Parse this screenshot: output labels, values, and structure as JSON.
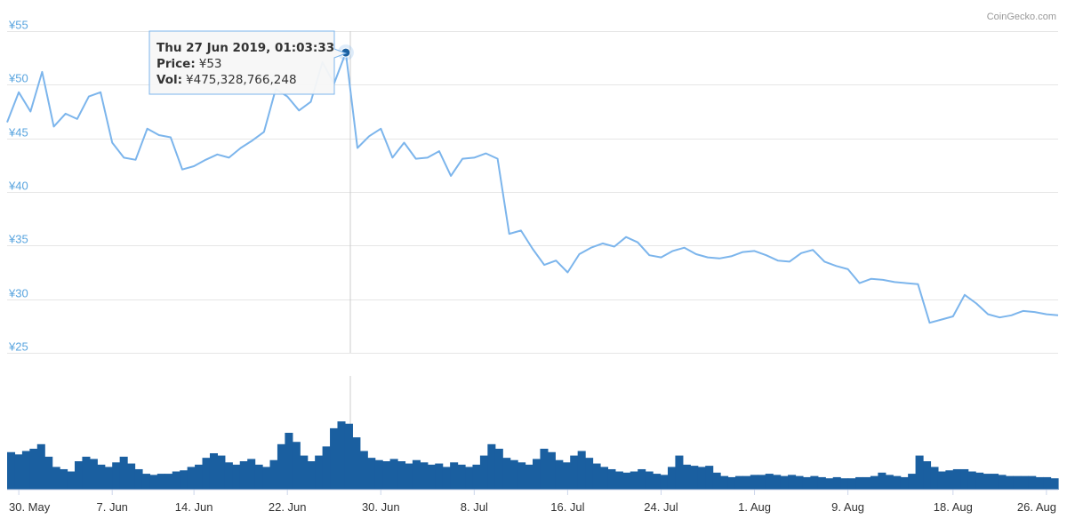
{
  "credit": "CoinGecko.com",
  "tooltip": {
    "date": "Thu 27 Jun 2019, 01:03:33",
    "price_label": "Price:",
    "price_value": "¥53",
    "vol_label": "Vol:",
    "vol_value": "¥475,328,766,248"
  },
  "chart_data": {
    "type": "line",
    "title": "",
    "currency": "¥",
    "price_axis": {
      "ticks": [
        "¥55",
        "¥50",
        "¥45",
        "¥40",
        "¥35",
        "¥30",
        "¥25"
      ],
      "tick_values": [
        55,
        50,
        45,
        40,
        35,
        30,
        25
      ],
      "ylim": [
        25,
        55
      ]
    },
    "x_axis": {
      "ticks": [
        "30. May",
        "7. Jun",
        "14. Jun",
        "22. Jun",
        "30. Jun",
        "8. Jul",
        "16. Jul",
        "24. Jul",
        "1. Aug",
        "9. Aug",
        "18. Aug",
        "26. Aug"
      ],
      "tick_dates": [
        "2019-05-30",
        "2019-06-07",
        "2019-06-14",
        "2019-06-22",
        "2019-06-30",
        "2019-07-08",
        "2019-07-16",
        "2019-07-24",
        "2019-08-01",
        "2019-08-09",
        "2019-08-18",
        "2019-08-26"
      ],
      "range": [
        "2019-05-29",
        "2019-08-27"
      ]
    },
    "grid": true,
    "hover": {
      "date": "2019-06-27",
      "price": 53,
      "volume": 475328766248
    },
    "series": [
      {
        "name": "Price",
        "color": "#7cb5ec",
        "points": [
          [
            "2019-05-29",
            46.5
          ],
          [
            "2019-05-30",
            49.3
          ],
          [
            "2019-05-31",
            47.5
          ],
          [
            "2019-06-01",
            51.2
          ],
          [
            "2019-06-02",
            46.1
          ],
          [
            "2019-06-03",
            47.3
          ],
          [
            "2019-06-04",
            46.8
          ],
          [
            "2019-06-05",
            48.9
          ],
          [
            "2019-06-06",
            49.3
          ],
          [
            "2019-06-07",
            44.6
          ],
          [
            "2019-06-08",
            43.2
          ],
          [
            "2019-06-09",
            43.0
          ],
          [
            "2019-06-10",
            45.9
          ],
          [
            "2019-06-11",
            45.3
          ],
          [
            "2019-06-12",
            45.1
          ],
          [
            "2019-06-13",
            42.1
          ],
          [
            "2019-06-14",
            42.4
          ],
          [
            "2019-06-15",
            43.0
          ],
          [
            "2019-06-16",
            43.5
          ],
          [
            "2019-06-17",
            43.2
          ],
          [
            "2019-06-18",
            44.1
          ],
          [
            "2019-06-19",
            44.8
          ],
          [
            "2019-06-20",
            45.6
          ],
          [
            "2019-06-21",
            49.6
          ],
          [
            "2019-06-22",
            48.9
          ],
          [
            "2019-06-23",
            47.6
          ],
          [
            "2019-06-24",
            48.4
          ],
          [
            "2019-06-25",
            52.1
          ],
          [
            "2019-06-26",
            50.1
          ],
          [
            "2019-06-27",
            53.0
          ],
          [
            "2019-06-28",
            44.1
          ],
          [
            "2019-06-29",
            45.2
          ],
          [
            "2019-06-30",
            45.9
          ],
          [
            "2019-07-01",
            43.2
          ],
          [
            "2019-07-02",
            44.6
          ],
          [
            "2019-07-03",
            43.1
          ],
          [
            "2019-07-04",
            43.2
          ],
          [
            "2019-07-05",
            43.8
          ],
          [
            "2019-07-06",
            41.5
          ],
          [
            "2019-07-07",
            43.1
          ],
          [
            "2019-07-08",
            43.2
          ],
          [
            "2019-07-09",
            43.6
          ],
          [
            "2019-07-10",
            43.1
          ],
          [
            "2019-07-11",
            36.1
          ],
          [
            "2019-07-12",
            36.4
          ],
          [
            "2019-07-13",
            34.7
          ],
          [
            "2019-07-14",
            33.2
          ],
          [
            "2019-07-15",
            33.6
          ],
          [
            "2019-07-16",
            32.5
          ],
          [
            "2019-07-17",
            34.2
          ],
          [
            "2019-07-18",
            34.8
          ],
          [
            "2019-07-19",
            35.2
          ],
          [
            "2019-07-20",
            34.9
          ],
          [
            "2019-07-21",
            35.8
          ],
          [
            "2019-07-22",
            35.3
          ],
          [
            "2019-07-23",
            34.1
          ],
          [
            "2019-07-24",
            33.9
          ],
          [
            "2019-07-25",
            34.5
          ],
          [
            "2019-07-26",
            34.8
          ],
          [
            "2019-07-27",
            34.2
          ],
          [
            "2019-07-28",
            33.9
          ],
          [
            "2019-07-29",
            33.8
          ],
          [
            "2019-07-30",
            34.0
          ],
          [
            "2019-07-31",
            34.4
          ],
          [
            "2019-08-01",
            34.5
          ],
          [
            "2019-08-02",
            34.1
          ],
          [
            "2019-08-03",
            33.6
          ],
          [
            "2019-08-04",
            33.5
          ],
          [
            "2019-08-05",
            34.3
          ],
          [
            "2019-08-06",
            34.6
          ],
          [
            "2019-08-07",
            33.5
          ],
          [
            "2019-08-08",
            33.1
          ],
          [
            "2019-08-09",
            32.8
          ],
          [
            "2019-08-10",
            31.5
          ],
          [
            "2019-08-11",
            31.9
          ],
          [
            "2019-08-12",
            31.8
          ],
          [
            "2019-08-13",
            31.6
          ],
          [
            "2019-08-14",
            31.5
          ],
          [
            "2019-08-15",
            31.4
          ],
          [
            "2019-08-16",
            27.8
          ],
          [
            "2019-08-17",
            28.1
          ],
          [
            "2019-08-18",
            28.4
          ],
          [
            "2019-08-19",
            30.4
          ],
          [
            "2019-08-20",
            29.6
          ],
          [
            "2019-08-21",
            28.6
          ],
          [
            "2019-08-22",
            28.3
          ],
          [
            "2019-08-23",
            28.5
          ],
          [
            "2019-08-24",
            28.9
          ],
          [
            "2019-08-25",
            28.8
          ],
          [
            "2019-08-26",
            28.6
          ],
          [
            "2019-08-27",
            28.5
          ]
        ]
      },
      {
        "name": "Volume",
        "color": "#1a5fa0",
        "relative_values": [
          0.33,
          0.31,
          0.34,
          0.36,
          0.4,
          0.29,
          0.2,
          0.18,
          0.16,
          0.25,
          0.29,
          0.27,
          0.22,
          0.2,
          0.24,
          0.29,
          0.23,
          0.18,
          0.14,
          0.13,
          0.14,
          0.14,
          0.16,
          0.17,
          0.2,
          0.22,
          0.28,
          0.32,
          0.3,
          0.24,
          0.22,
          0.25,
          0.27,
          0.22,
          0.2,
          0.26,
          0.4,
          0.5,
          0.42,
          0.3,
          0.25,
          0.3,
          0.38,
          0.54,
          0.6,
          0.58,
          0.46,
          0.34,
          0.28,
          0.26,
          0.25,
          0.27,
          0.25,
          0.23,
          0.26,
          0.24,
          0.22,
          0.23,
          0.2,
          0.24,
          0.22,
          0.2,
          0.22,
          0.3,
          0.4,
          0.36,
          0.28,
          0.26,
          0.24,
          0.22,
          0.27,
          0.36,
          0.33,
          0.26,
          0.24,
          0.3,
          0.34,
          0.28,
          0.23,
          0.2,
          0.18,
          0.16,
          0.15,
          0.16,
          0.18,
          0.16,
          0.14,
          0.13,
          0.2,
          0.3,
          0.22,
          0.21,
          0.2,
          0.21,
          0.15,
          0.12,
          0.11,
          0.12,
          0.12,
          0.13,
          0.13,
          0.14,
          0.13,
          0.12,
          0.13,
          0.12,
          0.11,
          0.12,
          0.11,
          0.1,
          0.11,
          0.1,
          0.1,
          0.11,
          0.11,
          0.12,
          0.15,
          0.13,
          0.12,
          0.11,
          0.14,
          0.3,
          0.25,
          0.2,
          0.16,
          0.17,
          0.18,
          0.18,
          0.16,
          0.15,
          0.14,
          0.14,
          0.13,
          0.12,
          0.12,
          0.12,
          0.12,
          0.11,
          0.11,
          0.1
        ]
      }
    ]
  }
}
